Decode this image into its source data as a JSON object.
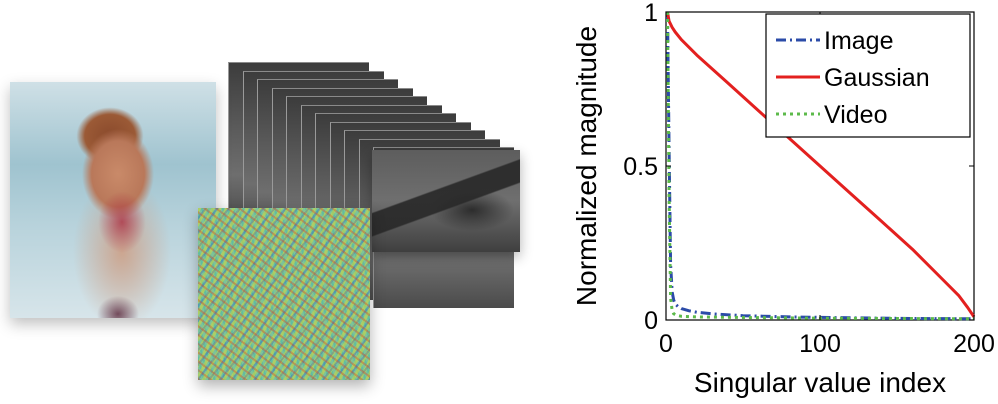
{
  "illustration": {
    "panels": [
      "photo-child",
      "video-frames",
      "gaussian-noise"
    ]
  },
  "chart_data": {
    "type": "line",
    "xlabel": "Singular value index",
    "ylabel": "Normalized magnitude",
    "xlim": [
      0,
      200
    ],
    "ylim": [
      0,
      1
    ],
    "xticks": [
      "0",
      "100",
      "200"
    ],
    "yticks": [
      "0",
      "0.5",
      "1"
    ],
    "grid": false,
    "legend_position": "top-right",
    "series": [
      {
        "name": "Image",
        "color": "#2b4ba8",
        "dash": "dash-dot",
        "x": [
          1,
          2,
          3,
          4,
          5,
          6,
          8,
          10,
          15,
          20,
          30,
          50,
          80,
          120,
          160,
          200
        ],
        "y": [
          1.0,
          0.55,
          0.18,
          0.09,
          0.065,
          0.052,
          0.043,
          0.037,
          0.03,
          0.025,
          0.02,
          0.014,
          0.01,
          0.007,
          0.005,
          0.004
        ]
      },
      {
        "name": "Gaussian",
        "color": "#e3201f",
        "dash": "solid",
        "x": [
          1,
          2,
          4,
          6,
          10,
          20,
          40,
          60,
          80,
          100,
          120,
          140,
          160,
          180,
          190,
          196,
          200
        ],
        "y": [
          1.0,
          0.97,
          0.95,
          0.935,
          0.91,
          0.86,
          0.77,
          0.68,
          0.59,
          0.5,
          0.41,
          0.32,
          0.23,
          0.13,
          0.08,
          0.04,
          0.01
        ]
      },
      {
        "name": "Video",
        "color": "#5cba4a",
        "dash": "dotted",
        "x": [
          1,
          2,
          3,
          4,
          5,
          7,
          10,
          20,
          50,
          100,
          150,
          200
        ],
        "y": [
          1.0,
          0.4,
          0.07,
          0.03,
          0.02,
          0.015,
          0.012,
          0.01,
          0.008,
          0.006,
          0.005,
          0.004
        ]
      }
    ]
  }
}
